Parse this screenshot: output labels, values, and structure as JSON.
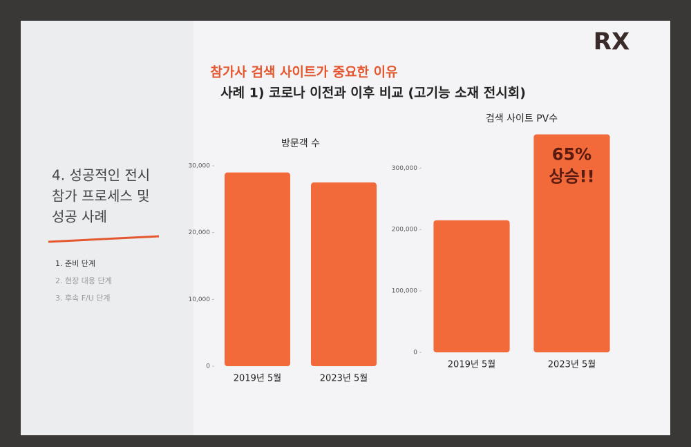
{
  "slide": {
    "logo": "RX",
    "heading": "참가사 검색 사이트가 중요한 이유",
    "subheading": "사례 1) 코로나 이전과 이후 비교 (고기능 소재 전시회)",
    "section_title": [
      "4. 성공적인 전시",
      "참가 프로세스 및",
      "성공 사례"
    ],
    "steps": [
      "1. 준비 단계",
      "2. 현장 대응 단계",
      "3. 후속 F/U 단계"
    ]
  },
  "chart_data": [
    {
      "type": "bar",
      "title": "방문객 수",
      "categories": [
        "2019년 5월",
        "2023년 5월"
      ],
      "values": [
        29000,
        27500
      ],
      "color": "#f26a3a",
      "ylim": [
        0,
        30000
      ],
      "yticks": [
        0,
        {
          "value": 10000,
          "label": "10,000"
        },
        {
          "value": 20000,
          "label": "20,000"
        },
        {
          "value": 30000,
          "label": "30,000"
        }
      ]
    },
    {
      "type": "bar",
      "title": "검색 사이트 PV수",
      "categories": [
        "2019년 5월",
        "2023년 5월"
      ],
      "values": [
        215000,
        355000
      ],
      "color": "#f26a3a",
      "ylim": [
        0,
        360000
      ],
      "yticks": [
        0,
        {
          "value": 100000,
          "label": "100,000"
        },
        {
          "value": 200000,
          "label": "200,000"
        },
        {
          "value": 300000,
          "label": "300,000"
        }
      ],
      "annotation": [
        "65%",
        "상승!!"
      ]
    }
  ]
}
